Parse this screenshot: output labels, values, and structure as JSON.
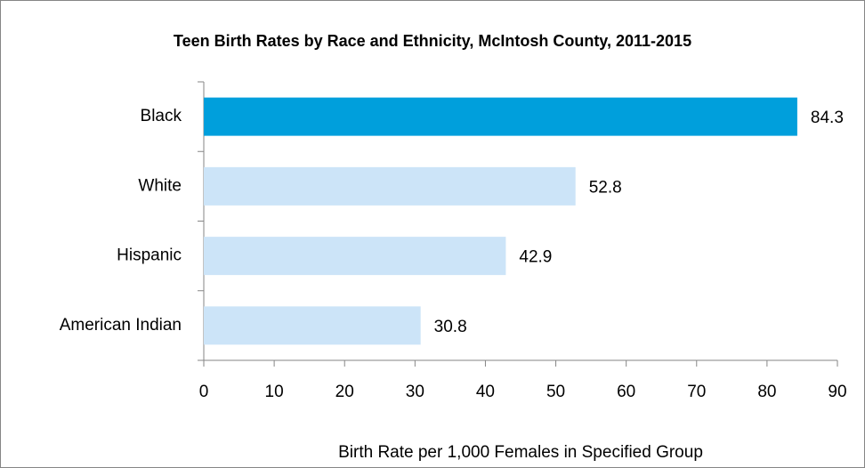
{
  "chart_data": {
    "type": "bar",
    "orientation": "horizontal",
    "title": "Teen Birth Rates by Race and Ethnicity, McIntosh County, 2011-2015",
    "x_label": "Birth Rate per 1,000 Females in Specified Group",
    "categories": [
      "Black",
      "White",
      "Hispanic",
      "American Indian"
    ],
    "values": [
      84.3,
      52.8,
      42.9,
      30.8
    ],
    "colors": [
      "#009fdc",
      "#cce4f8",
      "#cce4f8",
      "#cce4f8"
    ],
    "xlim": [
      0,
      90
    ],
    "xticks": [
      0,
      10,
      20,
      30,
      40,
      50,
      60,
      70,
      80,
      90
    ],
    "grid": false
  }
}
